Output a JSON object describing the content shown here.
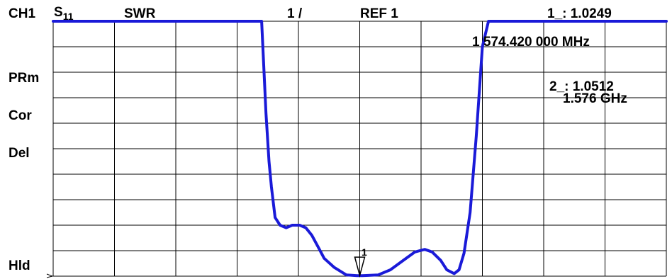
{
  "header": {
    "channel": "CH1",
    "param": "S",
    "param_sub": "11",
    "format": "SWR",
    "scale": "1 /",
    "ref": "REF 1"
  },
  "side_labels": [
    "PRm",
    "Cor",
    "Del",
    "Hld"
  ],
  "markers": {
    "m1_readout": "1_: 1.0249",
    "m1_freq": "1 574.420 000 MHz",
    "m2_readout": "2_: 1.0512",
    "m2_freq": "1.576 GHz",
    "active_marker_label": "1"
  },
  "colors": {
    "trace": "#1a1ad8",
    "grid": "#000000",
    "text": "#000000"
  },
  "chart_data": {
    "type": "line",
    "title": "",
    "xlabel": "",
    "ylabel": "",
    "grid": true,
    "divisions": {
      "x": 10,
      "y": 10
    },
    "ylim": [
      1,
      11
    ],
    "y_unit_per_div": 1,
    "series": [
      {
        "values_x_div": [
          0,
          3.4,
          3.47,
          3.52,
          3.56,
          3.62,
          3.7,
          3.8,
          3.9,
          4.02,
          4.12,
          4.22,
          4.32,
          4.42,
          4.58,
          4.78,
          4.96,
          5.04,
          5.14,
          5.3,
          5.5,
          5.7,
          5.9,
          6.06,
          6.18,
          6.32,
          6.42,
          6.54,
          6.62,
          6.7,
          6.8,
          6.9,
          7.0,
          7.1,
          10
        ],
        "values": [
          11,
          11,
          7.4,
          5.5,
          4.5,
          3.3,
          3.0,
          2.9,
          3.0,
          3.0,
          2.9,
          2.6,
          2.15,
          1.7,
          1.35,
          1.05,
          1.02,
          1.02,
          1.03,
          1.05,
          1.25,
          1.6,
          1.95,
          2.05,
          1.95,
          1.62,
          1.25,
          1.1,
          1.25,
          1.9,
          3.5,
          6.5,
          10.0,
          11,
          11
        ]
      }
    ],
    "markers": [
      {
        "id": "1",
        "x_div": 5.0,
        "frequency": "1 574.420 000 MHz",
        "value": 1.0249
      },
      {
        "id": "2",
        "frequency": "1.576 GHz",
        "value": 1.0512
      }
    ]
  }
}
